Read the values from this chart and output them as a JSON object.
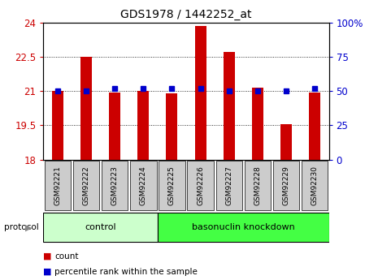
{
  "title": "GDS1978 / 1442252_at",
  "samples": [
    "GSM92221",
    "GSM92222",
    "GSM92223",
    "GSM92224",
    "GSM92225",
    "GSM92226",
    "GSM92227",
    "GSM92228",
    "GSM92229",
    "GSM92230"
  ],
  "counts": [
    21.0,
    22.5,
    20.95,
    21.0,
    20.9,
    23.85,
    22.7,
    21.15,
    19.55,
    20.95
  ],
  "percentile_ranks": [
    50,
    50,
    52,
    52,
    52,
    52,
    50,
    50,
    50,
    52
  ],
  "ylim_left": [
    18,
    24
  ],
  "ylim_right": [
    0,
    100
  ],
  "yticks_left": [
    18,
    19.5,
    21,
    22.5,
    24
  ],
  "yticks_right": [
    0,
    25,
    50,
    75,
    100
  ],
  "ytick_labels_left": [
    "18",
    "19.5",
    "21",
    "22.5",
    "24"
  ],
  "ytick_labels_right": [
    "0",
    "25",
    "50",
    "75",
    "100%"
  ],
  "bar_color": "#cc0000",
  "dot_color": "#0000cc",
  "bar_width": 0.4,
  "n_control": 4,
  "n_knockdown": 6,
  "control_label": "control",
  "knockdown_label": "basonuclin knockdown",
  "protocol_label": "protocol",
  "legend_count": "count",
  "legend_pct": "percentile rank within the sample",
  "group_bg_control": "#ccffcc",
  "group_bg_knockdown": "#44ff44",
  "tick_label_bg": "#cccccc",
  "left_tick_color": "#cc0000",
  "right_tick_color": "#0000cc",
  "fig_bg": "#ffffff"
}
